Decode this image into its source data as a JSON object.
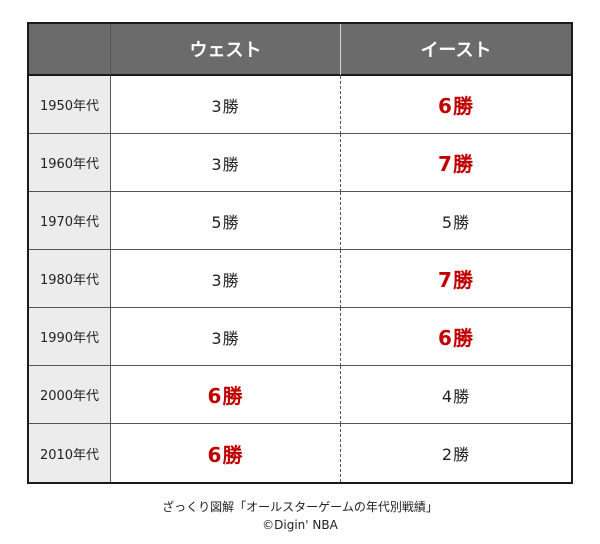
{
  "table": {
    "header": {
      "corner": "",
      "west": "ウェスト",
      "east": "イースト"
    },
    "rows": [
      {
        "decade": "1950年代",
        "west": "3勝",
        "east": "6勝",
        "west_highlight": false,
        "east_highlight": true
      },
      {
        "decade": "1960年代",
        "west": "3勝",
        "east": "7勝",
        "west_highlight": false,
        "east_highlight": true
      },
      {
        "decade": "1970年代",
        "west": "5勝",
        "east": "5勝",
        "west_highlight": false,
        "east_highlight": false
      },
      {
        "decade": "1980年代",
        "west": "3勝",
        "east": "7勝",
        "west_highlight": false,
        "east_highlight": true
      },
      {
        "decade": "1990年代",
        "west": "3勝",
        "east": "6勝",
        "west_highlight": false,
        "east_highlight": true
      },
      {
        "decade": "2000年代",
        "west": "6勝",
        "east": "4勝",
        "west_highlight": true,
        "east_highlight": false
      },
      {
        "decade": "2010年代",
        "west": "6勝",
        "east": "2勝",
        "west_highlight": true,
        "east_highlight": false
      }
    ]
  },
  "caption": {
    "line1": "ざっくり図解「オールスターゲームの年代別戦績」",
    "line2": "©Digin' NBA"
  },
  "colors": {
    "header_bg": "#6b6b6b",
    "label_bg": "#ececec",
    "highlight": "#c00000"
  }
}
